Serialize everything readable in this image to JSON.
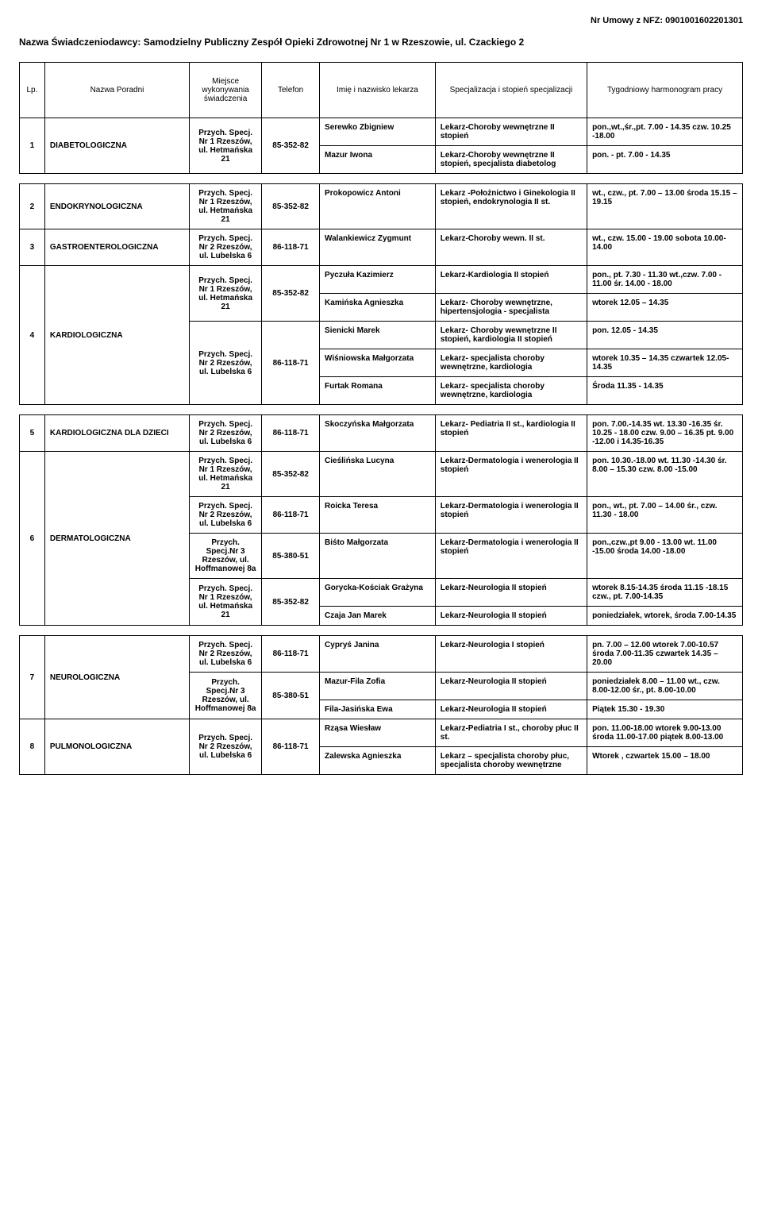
{
  "header": {
    "contract_label": "Nr Umowy z NFZ: 0901001602201301",
    "provider_label": "Nazwa Świadczeniodawcy:",
    "provider_value": "Samodzielny Publiczny Zespół Opieki Zdrowotnej Nr 1 w  Rzeszowie, ul. Czackiego 2"
  },
  "columns": {
    "lp": "Lp.",
    "name": "Nazwa Poradni",
    "loc": "Miejsce wykonywania świadczenia",
    "tel": "Telefon",
    "doc": "Imię i nazwisko lekarza",
    "spec": "Specjalizacja i stopień specjalizacji",
    "sched": "Tygodniowy harmonogram pracy"
  },
  "loc": {
    "h21": "Przych. Specj. Nr 1 Rzeszów, ul. Hetmańska 21",
    "l6": "Przych. Specj. Nr 2 Rzeszów, ul. Lubelska 6",
    "h8a": "Przych. Specj.Nr 3 Rzeszów, ul. Hoffmanowej 8a"
  },
  "tel": {
    "h21": "85-352-82",
    "l6": "86-118-71",
    "h8a": "85-380-51"
  },
  "r1": {
    "lp": "1",
    "name": "DIABETOLOGICZNA",
    "d1": "Serewko Zbigniew",
    "s1": "Lekarz-Choroby wewnętrzne II stopień",
    "h1": "pon.,wt.,śr.,pt.  7.00 - 14.35 czw.  10.25 -18.00",
    "d2": "Mazur Iwona",
    "s2": "Lekarz-Choroby wewnętrzne II stopień, specjalista diabetolog",
    "h2": "pon. - pt.  7.00 - 14.35"
  },
  "r2": {
    "lp": "2",
    "name": "ENDOKRYNOLOGICZNA",
    "d1": "Prokopowicz Antoni",
    "s1": "Lekarz -Położnictwo i Ginekologia II stopień, endokrynologia II st.",
    "h1": "wt.,  czw., pt.  7.00 – 13.00 środa  15.15 – 19.15"
  },
  "r3": {
    "lp": "3",
    "name": "GASTROENTEROLOGICZNA",
    "d1": "Walankiewicz Zygmunt",
    "s1": "Lekarz-Choroby wewn. II st.",
    "h1": "wt.,  czw.  15.00 - 19.00 sobota 10.00-14.00"
  },
  "r4": {
    "lp": "4",
    "name": "KARDIOLOGICZNA",
    "a": {
      "d1": "Pyczuła Kazimierz",
      "s1": "Lekarz-Kardiologia II stopień",
      "h1": "pon., pt.  7.30 - 11.30 wt.,czw.  7.00 - 11.00 śr.  14.00 - 18.00",
      "d2": "Kamińska Agnieszka",
      "s2": "Lekarz- Choroby wewnętrzne, hipertensjologia  - specjalista",
      "h2": "wtorek  12.05 – 14.35"
    },
    "b": {
      "d1": "Sienicki Marek",
      "s1": "Lekarz- Choroby wewnętrzne II stopień, kardiologia II stopień",
      "h1": "pon.  12.05 - 14.35",
      "d2": "Wiśniowska Małgorzata",
      "s2": "Lekarz- specjalista  choroby wewnętrzne, kardiologia",
      "h2": "wtorek  10.35 – 14.35 czwartek  12.05-14.35",
      "d3": "Furtak Romana",
      "s3": "Lekarz- specjalista  choroby wewnętrzne, kardiologia",
      "h3": "Środa  11.35 - 14.35"
    }
  },
  "r5": {
    "lp": "5",
    "name": "KARDIOLOGICZNA DLA  DZIECI",
    "d1": "Skoczyńska Małgorzata",
    "s1": "Lekarz- Pediatria II st., kardiologia  II stopień",
    "h1": "pon.  7.00.-14.35 wt.  13.30 -16.35 śr.  10.25 - 18.00 czw.  9.00 – 16.35 pt.  9.00 -12.00 i 14.35-16.35"
  },
  "r6": {
    "lp": "6",
    "name": "DERMATOLOGICZNA",
    "a": {
      "d": "Cieślińska Lucyna",
      "s": "Lekarz-Dermatologia i wenerologia II stopień",
      "h": "pon.  10.30.-18.00 wt.  11.30 -14.30 śr.  8.00 – 15.30 czw.  8.00 -15.00"
    },
    "b": {
      "d": "Roicka Teresa",
      "s": "Lekarz-Dermatologia i wenerologia  II stopień",
      "h": "pon., wt., pt.  7.00 – 14.00 śr., czw.   11.30 - 18.00"
    },
    "c": {
      "d": "Biśto Małgorzata",
      "s": "Lekarz-Dermatologia i wenerologia II stopień",
      "h": "pon.,czw.,pt   9.00 - 13.00 wt.  11.00 -15.00 środa 14.00 -18.00"
    },
    "d": {
      "d1": "Gorycka-Kościak Grażyna",
      "s1": "Lekarz-Neurologia II stopień",
      "h1": "wtorek 8.15-14.35 środa  11.15 -18.15 czw., pt.  7.00-14.35",
      "d2": "Czaja Jan Marek",
      "s2": "Lekarz-Neurologia II stopień",
      "h2": "poniedziałek, wtorek, środa 7.00-14.35"
    }
  },
  "r7": {
    "lp": "7",
    "name": "NEUROLOGICZNA",
    "a": {
      "d": "Cypryś Janina",
      "s": "Lekarz-Neurologia I stopień",
      "h": "pn.  7.00 – 12.00 wtorek  7.00-10.57 środa  7.00-11.35 czwartek  14.35 – 20.00"
    },
    "b": {
      "d1": "Mazur-Fila Zofia",
      "s1": "Lekarz-Neurologia II stopień",
      "h1": "poniedziałek  8.00 – 11.00 wt., czw.  8.00-12.00 śr., pt.   8.00-10.00",
      "d2": "Fila-Jasińska Ewa",
      "s2": "Lekarz-Neurologia II stopień",
      "h2": "Piątek  15.30 - 19.30"
    }
  },
  "r8": {
    "lp": "8",
    "name": "PULMONOLOGICZNA",
    "d1": "Rząsa Wiesław",
    "s1": "Lekarz-Pediatria I st., choroby płuc II st.",
    "h1": "pon.  11.00-18.00 wtorek  9.00-13.00 środa 11.00-17.00 piątek 8.00-13.00",
    "d2": "Zalewska Agnieszka",
    "s2": "Lekarz – specjalista choroby płuc, specjalista choroby wewnętrzne",
    "h2": "Wtorek ,  czwartek   15.00 – 18.00"
  }
}
